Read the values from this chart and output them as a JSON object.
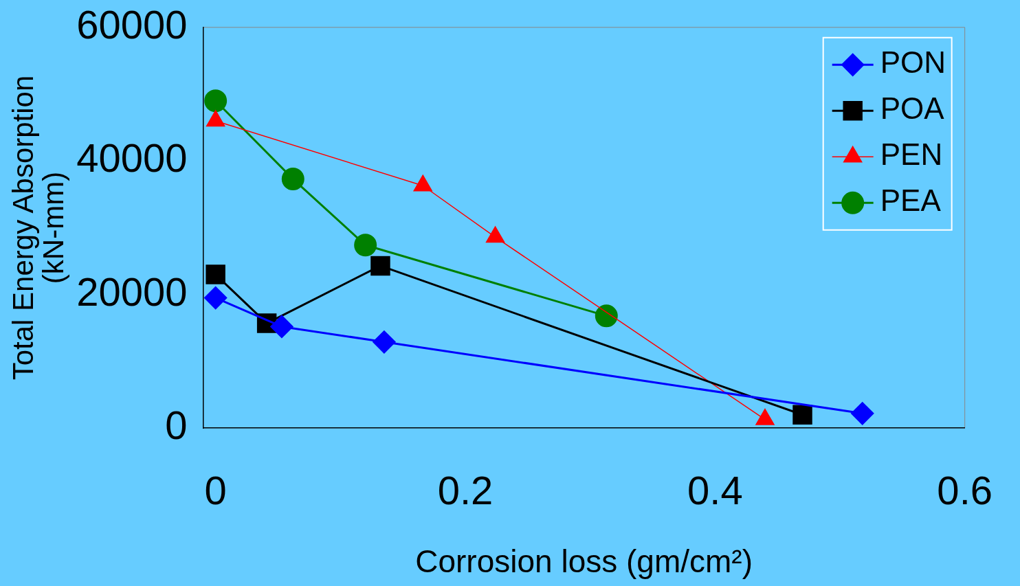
{
  "chart_data": {
    "type": "line",
    "xlabel": "Corrosion loss (gm/cm²)",
    "ylabel": "Total Energy Absorption\n(kN-mm)",
    "xlim": [
      -0.01,
      0.6
    ],
    "xticks": [
      0,
      0.2,
      0.4,
      0.6
    ],
    "ylim": [
      0,
      60000
    ],
    "yticks": [
      0,
      20000,
      40000,
      60000
    ],
    "grid": false,
    "legend": "top right",
    "series": [
      {
        "name": "PON",
        "color": "#0000ff",
        "marker": "diamond",
        "x": [
          0,
          0.053,
          0.135,
          0.518
        ],
        "values": [
          19500,
          15200,
          12900,
          2200
        ]
      },
      {
        "name": "POA",
        "color": "#000000",
        "marker": "square",
        "x": [
          0,
          0.041,
          0.132,
          0.47
        ],
        "values": [
          23000,
          15700,
          24300,
          2000
        ]
      },
      {
        "name": "PEN",
        "color": "#ff0000",
        "marker": "triangle",
        "x": [
          0,
          0.166,
          0.224,
          0.44
        ],
        "values": [
          46000,
          36300,
          28600,
          1300
        ]
      },
      {
        "name": "PEA",
        "color": "#008000",
        "marker": "circle",
        "x": [
          0,
          0.062,
          0.12,
          0.313
        ],
        "values": [
          49000,
          37300,
          27400,
          16800
        ]
      }
    ]
  }
}
